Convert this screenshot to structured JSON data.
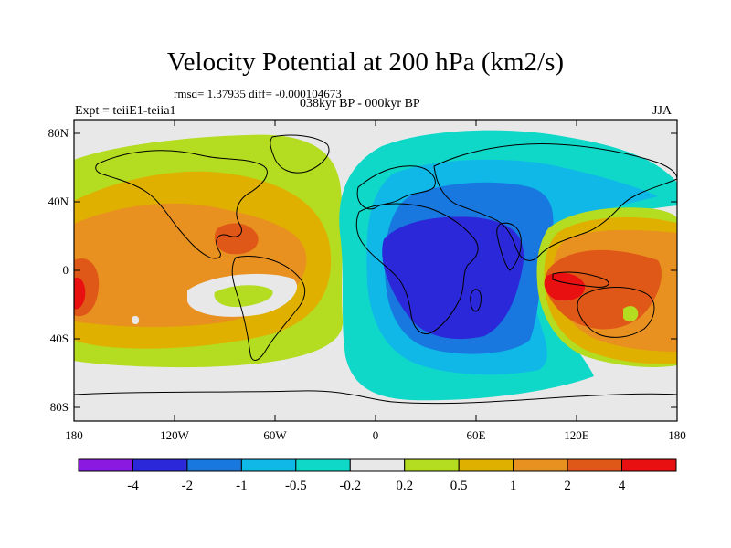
{
  "chart_data": {
    "type": "heatmap",
    "title": "Velocity Potential at 200 hPa (km2/s)",
    "stats_line": "rmsd= 1.37935 diff= -0.000104673",
    "periods": "038kyr BP - 000kyr BP",
    "experiment": "Expt = teiiE1-teiia1",
    "season": "JJA",
    "x_ticks": [
      "180",
      "120W",
      "60W",
      "0",
      "60E",
      "120E",
      "180"
    ],
    "y_ticks": [
      "80N",
      "40N",
      "0",
      "40S",
      "80S"
    ],
    "colorbar": {
      "labels": [
        "-4",
        "-2",
        "-1",
        "-0.5",
        "-0.2",
        "0.2",
        "0.5",
        "1",
        "2",
        "4"
      ],
      "colors": [
        "#8b19e0",
        "#2a28d8",
        "#1878e0",
        "#10b8e8",
        "#10d8c8",
        "#e8e8e8",
        "#b4dc20",
        "#e0b000",
        "#e89020",
        "#e05818",
        "#e81010"
      ]
    },
    "map_background": "#e8e8e8"
  }
}
